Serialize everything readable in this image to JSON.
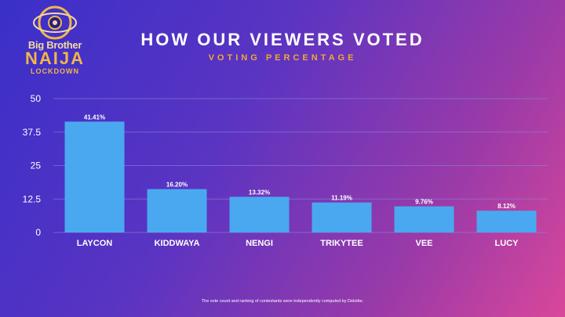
{
  "header": {
    "title": "HOW OUR VIEWERS VOTED",
    "subtitle": "VOTING PERCENTAGE"
  },
  "logo": {
    "line1": "Big Brother",
    "line2": "NAIJA",
    "line3": "LOCKDOWN"
  },
  "footnote": "The vote count and ranking of contestants were independently computed by Deloitte.",
  "colors": {
    "bar": "#4aa8f0",
    "grid": "#8a86d8",
    "accent": "#f0a838"
  },
  "chart_data": {
    "type": "bar",
    "title": "HOW OUR VIEWERS VOTED",
    "subtitle": "VOTING PERCENTAGE",
    "categories": [
      "LAYCON",
      "KIDDWAYA",
      "NENGI",
      "TRIKYTEE",
      "VEE",
      "LUCY"
    ],
    "values": [
      41.41,
      16.2,
      13.32,
      11.19,
      9.76,
      8.12
    ],
    "data_labels": [
      "41.41%",
      "16.20%",
      "13.32%",
      "11.19%",
      "9.76%",
      "8.12%"
    ],
    "yticks": [
      0,
      12.5,
      25,
      37.5,
      50
    ],
    "ytick_labels": [
      "0",
      "12.5",
      "25",
      "37.5",
      "50"
    ],
    "ylim": [
      0,
      50
    ],
    "xlabel": "",
    "ylabel": "",
    "grid": true,
    "legend": "none"
  }
}
